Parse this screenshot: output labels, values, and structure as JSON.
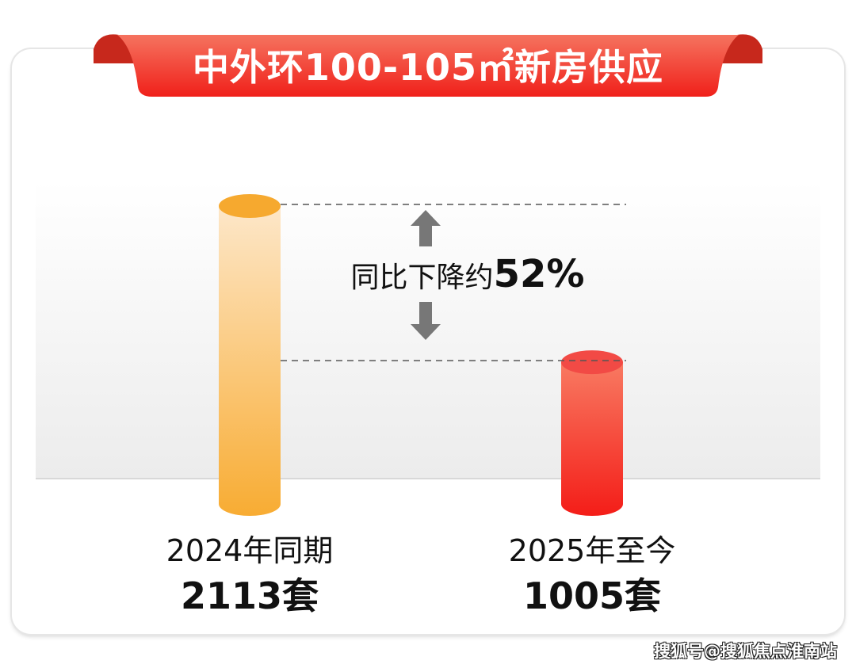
{
  "title": "中外环100-105㎡新房供应",
  "chart_data": {
    "type": "bar",
    "title": "中外环100-105㎡新房供应",
    "categories": [
      "2024年同期",
      "2025年至今"
    ],
    "values": [
      2113,
      1005
    ],
    "value_labels": [
      "2113套",
      "1005套"
    ],
    "unit": "套",
    "colors": [
      "#f8ad38",
      "#f53a2e"
    ],
    "annotation": {
      "prefix": "同比下降约",
      "value": "52%"
    }
  },
  "watermark": "搜狐号@搜狐焦点淮南站"
}
